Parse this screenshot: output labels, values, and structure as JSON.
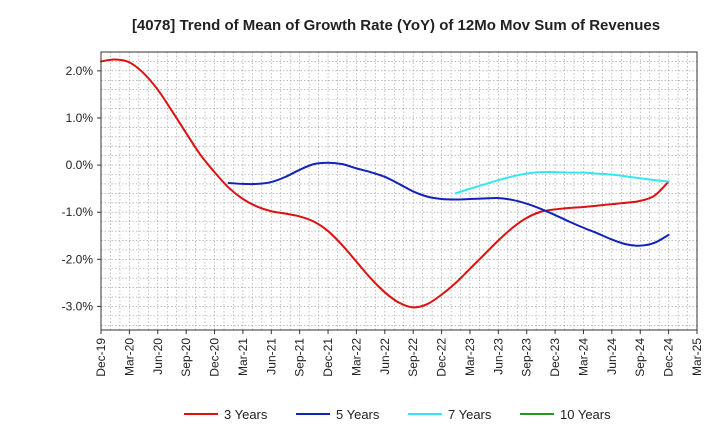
{
  "chart_data": {
    "type": "line",
    "title": "[4078]  Trend of Mean of Growth Rate (YoY) of 12Mo Mov Sum of Revenues",
    "xlabel": "",
    "ylabel": "",
    "x_ticks": [
      "Dec-19",
      "Mar-20",
      "Jun-20",
      "Sep-20",
      "Dec-20",
      "Mar-21",
      "Jun-21",
      "Sep-21",
      "Dec-21",
      "Mar-22",
      "Jun-22",
      "Sep-22",
      "Dec-22",
      "Mar-23",
      "Jun-23",
      "Sep-23",
      "Dec-23",
      "Mar-24",
      "Jun-24",
      "Sep-24",
      "Dec-24",
      "Mar-25"
    ],
    "y_ticks": [
      2.0,
      1.0,
      0.0,
      -1.0,
      -2.0,
      -3.0
    ],
    "y_tick_labels": [
      "2.0%",
      "1.0%",
      "0.0%",
      "-1.0%",
      "-2.0%",
      "-3.0%"
    ],
    "ylim": [
      -3.5,
      2.4
    ],
    "grid": true,
    "legend_position": "bottom",
    "series": [
      {
        "name": "3 Years",
        "color": "#dd1111",
        "points": [
          {
            "x": 0,
            "y": 2.2
          },
          {
            "x": 0.5,
            "y": 2.24
          },
          {
            "x": 1,
            "y": 2.18
          },
          {
            "x": 1.5,
            "y": 1.95
          },
          {
            "x": 2,
            "y": 1.6
          },
          {
            "x": 2.5,
            "y": 1.15
          },
          {
            "x": 3,
            "y": 0.68
          },
          {
            "x": 3.5,
            "y": 0.22
          },
          {
            "x": 4,
            "y": -0.15
          },
          {
            "x": 4.5,
            "y": -0.48
          },
          {
            "x": 5,
            "y": -0.72
          },
          {
            "x": 5.5,
            "y": -0.88
          },
          {
            "x": 6,
            "y": -0.98
          },
          {
            "x": 6.5,
            "y": -1.03
          },
          {
            "x": 7,
            "y": -1.09
          },
          {
            "x": 7.5,
            "y": -1.2
          },
          {
            "x": 8,
            "y": -1.4
          },
          {
            "x": 8.5,
            "y": -1.7
          },
          {
            "x": 9,
            "y": -2.05
          },
          {
            "x": 9.5,
            "y": -2.4
          },
          {
            "x": 10,
            "y": -2.7
          },
          {
            "x": 10.5,
            "y": -2.92
          },
          {
            "x": 11,
            "y": -3.02
          },
          {
            "x": 11.5,
            "y": -2.95
          },
          {
            "x": 12,
            "y": -2.75
          },
          {
            "x": 12.5,
            "y": -2.5
          },
          {
            "x": 13,
            "y": -2.2
          },
          {
            "x": 13.5,
            "y": -1.9
          },
          {
            "x": 14,
            "y": -1.6
          },
          {
            "x": 14.5,
            "y": -1.33
          },
          {
            "x": 15,
            "y": -1.12
          },
          {
            "x": 15.5,
            "y": -0.99
          },
          {
            "x": 16,
            "y": -0.94
          },
          {
            "x": 16.5,
            "y": -0.91
          },
          {
            "x": 17,
            "y": -0.89
          },
          {
            "x": 17.5,
            "y": -0.86
          },
          {
            "x": 18,
            "y": -0.83
          },
          {
            "x": 18.5,
            "y": -0.8
          },
          {
            "x": 19,
            "y": -0.76
          },
          {
            "x": 19.5,
            "y": -0.65
          },
          {
            "x": 20,
            "y": -0.35
          }
        ]
      },
      {
        "name": "5 Years",
        "color": "#1122bb",
        "points": [
          {
            "x": 4.5,
            "y": -0.38
          },
          {
            "x": 5,
            "y": -0.4
          },
          {
            "x": 5.5,
            "y": -0.4
          },
          {
            "x": 6,
            "y": -0.36
          },
          {
            "x": 6.5,
            "y": -0.25
          },
          {
            "x": 7,
            "y": -0.1
          },
          {
            "x": 7.5,
            "y": 0.02
          },
          {
            "x": 8,
            "y": 0.05
          },
          {
            "x": 8.5,
            "y": 0.02
          },
          {
            "x": 9,
            "y": -0.07
          },
          {
            "x": 9.5,
            "y": -0.15
          },
          {
            "x": 10,
            "y": -0.25
          },
          {
            "x": 10.5,
            "y": -0.4
          },
          {
            "x": 11,
            "y": -0.56
          },
          {
            "x": 11.5,
            "y": -0.67
          },
          {
            "x": 12,
            "y": -0.72
          },
          {
            "x": 12.5,
            "y": -0.73
          },
          {
            "x": 13,
            "y": -0.72
          },
          {
            "x": 13.5,
            "y": -0.71
          },
          {
            "x": 14,
            "y": -0.7
          },
          {
            "x": 14.5,
            "y": -0.74
          },
          {
            "x": 15,
            "y": -0.82
          },
          {
            "x": 15.5,
            "y": -0.93
          },
          {
            "x": 16,
            "y": -1.06
          },
          {
            "x": 16.5,
            "y": -1.2
          },
          {
            "x": 17,
            "y": -1.33
          },
          {
            "x": 17.5,
            "y": -1.45
          },
          {
            "x": 18,
            "y": -1.58
          },
          {
            "x": 18.5,
            "y": -1.68
          },
          {
            "x": 19,
            "y": -1.71
          },
          {
            "x": 19.5,
            "y": -1.65
          },
          {
            "x": 20,
            "y": -1.48
          }
        ]
      },
      {
        "name": "7 Years",
        "color": "#33e8ee",
        "points": [
          {
            "x": 12.5,
            "y": -0.6
          },
          {
            "x": 13,
            "y": -0.5
          },
          {
            "x": 13.5,
            "y": -0.41
          },
          {
            "x": 14,
            "y": -0.32
          },
          {
            "x": 14.5,
            "y": -0.24
          },
          {
            "x": 15,
            "y": -0.18
          },
          {
            "x": 15.5,
            "y": -0.15
          },
          {
            "x": 16,
            "y": -0.15
          },
          {
            "x": 16.5,
            "y": -0.16
          },
          {
            "x": 17,
            "y": -0.16
          },
          {
            "x": 17.5,
            "y": -0.18
          },
          {
            "x": 18,
            "y": -0.2
          },
          {
            "x": 18.5,
            "y": -0.24
          },
          {
            "x": 19,
            "y": -0.28
          },
          {
            "x": 19.5,
            "y": -0.32
          },
          {
            "x": 20,
            "y": -0.35
          }
        ]
      },
      {
        "name": "10 Years",
        "color": "#229922",
        "points": []
      }
    ]
  }
}
